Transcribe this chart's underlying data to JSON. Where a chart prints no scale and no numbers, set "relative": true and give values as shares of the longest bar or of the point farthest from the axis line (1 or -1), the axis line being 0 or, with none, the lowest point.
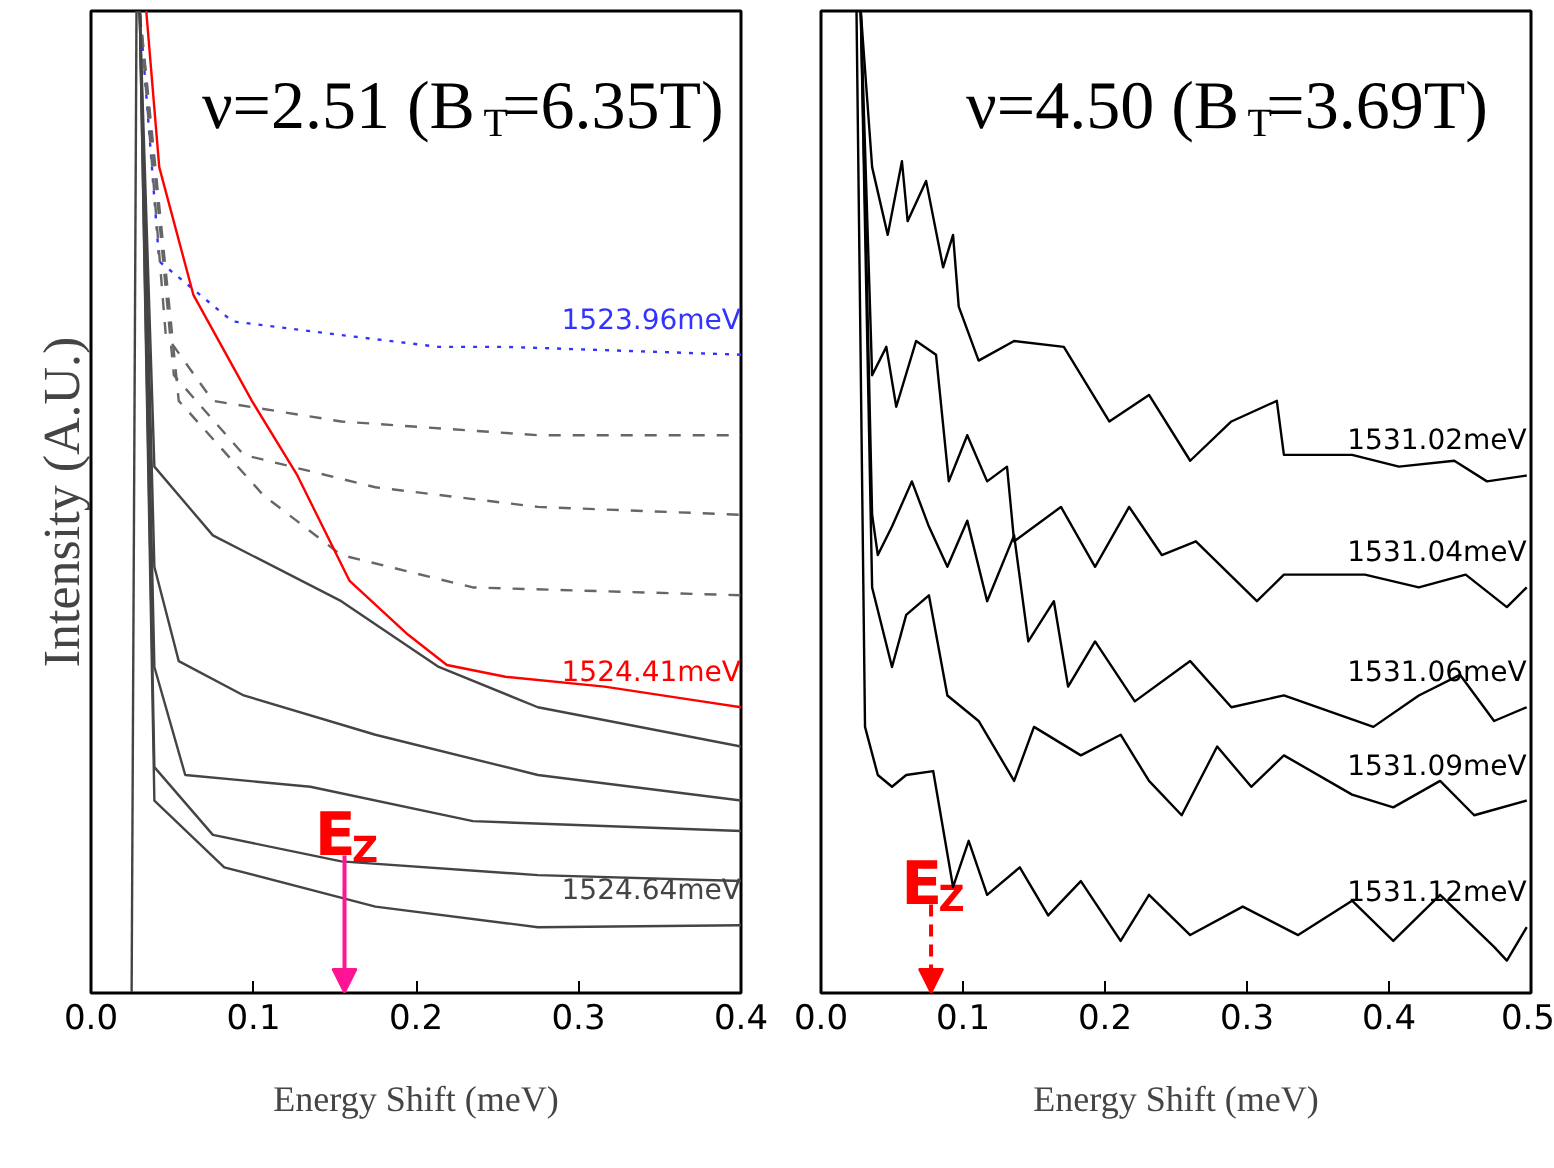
{
  "chart_data": [
    {
      "type": "line",
      "title": "ν=2.51 (B$_{T}$=6.35T)",
      "xlabel": "Energy Shift (meV)",
      "ylabel": "Intensity (A.U.)",
      "relative": true,
      "xlim": [
        0,
        0.4
      ],
      "xticks": [
        {
          "value": 0,
          "label": "0.0"
        },
        {
          "value": 0.1,
          "label": "0.1"
        },
        {
          "value": 0.2,
          "label": "0.2"
        },
        {
          "value": 0.3,
          "label": "0.3"
        },
        {
          "value": 0.4,
          "label": "0.4"
        }
      ],
      "series": [
        {
          "name": "1523.96meV",
          "color": "#3333ff",
          "line_style": "dotted",
          "x": [
            0.03,
            0.042,
            0.087,
            0.154,
            0.214,
            0.255,
            0.4
          ],
          "values": [
            1.0,
            0.745,
            0.684,
            0.67,
            0.658,
            0.658,
            0.65
          ]
        },
        {
          "color": "#666666",
          "line_style": "dashed",
          "x": [
            0.03,
            0.046,
            0.075,
            0.154,
            0.275,
            0.4
          ],
          "values": [
            1.0,
            0.67,
            0.603,
            0.582,
            0.568,
            0.568
          ]
        },
        {
          "color": "#666666",
          "line_style": "dashed",
          "x": [
            0.03,
            0.051,
            0.094,
            0.175,
            0.275,
            0.4
          ],
          "values": [
            1.0,
            0.629,
            0.548,
            0.515,
            0.495,
            0.487
          ]
        },
        {
          "color": "#666666",
          "line_style": "dashed",
          "x": [
            0.03,
            0.054,
            0.106,
            0.154,
            0.235,
            0.4
          ],
          "values": [
            1.0,
            0.603,
            0.507,
            0.446,
            0.413,
            0.405
          ]
        },
        {
          "name": "1524.41meV",
          "color": "#ff0000",
          "line_style": "solid",
          "x": [
            0.034,
            0.042,
            0.063,
            0.099,
            0.127,
            0.159,
            0.195,
            0.219,
            0.255,
            0.316,
            0.376,
            0.4
          ],
          "values": [
            1.0,
            0.841,
            0.711,
            0.603,
            0.527,
            0.42,
            0.365,
            0.334,
            0.322,
            0.312,
            0.297,
            0.291
          ]
        },
        {
          "color": "#444444",
          "line_style": "solid",
          "x": [
            0.03,
            0.039,
            0.075,
            0.154,
            0.214,
            0.275,
            0.4
          ],
          "values": [
            1.0,
            0.536,
            0.466,
            0.399,
            0.332,
            0.291,
            0.251
          ]
        },
        {
          "color": "#444444",
          "line_style": "solid",
          "x": [
            0.03,
            0.039,
            0.054,
            0.094,
            0.175,
            0.275,
            0.4
          ],
          "values": [
            1.0,
            0.434,
            0.338,
            0.303,
            0.263,
            0.222,
            0.196
          ]
        },
        {
          "color": "#444444",
          "line_style": "solid",
          "x": [
            0.03,
            0.039,
            0.058,
            0.135,
            0.235,
            0.4
          ],
          "values": [
            1.0,
            0.332,
            0.222,
            0.21,
            0.175,
            0.165
          ]
        },
        {
          "color": "#444444",
          "line_style": "solid",
          "x": [
            0.03,
            0.039,
            0.075,
            0.154,
            0.275,
            0.4
          ],
          "values": [
            1.0,
            0.23,
            0.161,
            0.134,
            0.12,
            0.114
          ]
        },
        {
          "name": "1524.64meV",
          "color": "#444444",
          "line_style": "solid",
          "x": [
            0.03,
            0.039,
            0.082,
            0.175,
            0.275,
            0.4
          ],
          "values": [
            1.0,
            0.196,
            0.128,
            0.088,
            0.067,
            0.069
          ]
        },
        {
          "color": "#444444",
          "line_style": "solid",
          "x": [
            0.025,
            0.028
          ],
          "values": [
            0.0,
            1.0
          ]
        }
      ],
      "annotations": [
        "E$_{Z}$"
      ]
    },
    {
      "type": "line",
      "title": "ν=4.50 (B$_{T}$=3.69T)",
      "xlabel": "Energy Shift (meV)",
      "relative": true,
      "xlim": [
        0,
        0.5
      ],
      "xticks": [
        {
          "value": 0,
          "label": "0.0"
        },
        {
          "value": 0.1,
          "label": "0.1"
        },
        {
          "value": 0.2,
          "label": "0.2"
        },
        {
          "value": 0.3,
          "label": "0.3"
        },
        {
          "value": 0.4,
          "label": "0.4"
        },
        {
          "value": 0.5,
          "label": "0.5"
        }
      ],
      "series": [
        {
          "name": "1531.02meV",
          "color": "#000000",
          "line_style": "solid",
          "x": [
            0.028,
            0.036,
            0.047,
            0.057,
            0.061,
            0.074,
            0.086,
            0.093,
            0.097,
            0.111,
            0.136,
            0.171,
            0.203,
            0.231,
            0.26,
            0.289,
            0.321,
            0.326,
            0.374,
            0.407,
            0.446,
            0.469,
            0.497
          ],
          "values": [
            1.0,
            0.841,
            0.772,
            0.847,
            0.786,
            0.827,
            0.739,
            0.772,
            0.699,
            0.644,
            0.664,
            0.658,
            0.582,
            0.609,
            0.542,
            0.582,
            0.603,
            0.548,
            0.548,
            0.536,
            0.542,
            0.521,
            0.527
          ]
        },
        {
          "name": "1531.04meV",
          "color": "#000000",
          "line_style": "solid",
          "x": [
            0.028,
            0.036,
            0.046,
            0.053,
            0.067,
            0.081,
            0.09,
            0.103,
            0.117,
            0.131,
            0.136,
            0.169,
            0.193,
            0.217,
            0.24,
            0.264,
            0.307,
            0.326,
            0.383,
            0.421,
            0.454,
            0.483,
            0.497
          ],
          "values": [
            1.0,
            0.629,
            0.658,
            0.597,
            0.664,
            0.65,
            0.521,
            0.568,
            0.521,
            0.536,
            0.46,
            0.495,
            0.434,
            0.495,
            0.446,
            0.46,
            0.399,
            0.426,
            0.426,
            0.413,
            0.426,
            0.393,
            0.413
          ]
        },
        {
          "name": "1531.06meV",
          "color": "#000000",
          "line_style": "solid",
          "x": [
            0.028,
            0.036,
            0.04,
            0.05,
            0.064,
            0.076,
            0.089,
            0.103,
            0.117,
            0.136,
            0.146,
            0.164,
            0.174,
            0.193,
            0.221,
            0.26,
            0.289,
            0.326,
            0.389,
            0.421,
            0.45,
            0.474,
            0.497
          ],
          "values": [
            1.0,
            0.487,
            0.446,
            0.475,
            0.521,
            0.475,
            0.434,
            0.481,
            0.399,
            0.466,
            0.358,
            0.399,
            0.312,
            0.358,
            0.297,
            0.338,
            0.291,
            0.303,
            0.271,
            0.303,
            0.324,
            0.277,
            0.291
          ]
        },
        {
          "name": "1531.09meV",
          "color": "#000000",
          "line_style": "solid",
          "x": [
            0.028,
            0.036,
            0.05,
            0.06,
            0.076,
            0.089,
            0.111,
            0.136,
            0.15,
            0.183,
            0.211,
            0.231,
            0.254,
            0.279,
            0.303,
            0.326,
            0.374,
            0.403,
            0.436,
            0.46,
            0.497
          ],
          "values": [
            1.0,
            0.413,
            0.332,
            0.385,
            0.405,
            0.303,
            0.277,
            0.216,
            0.271,
            0.242,
            0.263,
            0.216,
            0.181,
            0.251,
            0.21,
            0.242,
            0.202,
            0.189,
            0.216,
            0.181,
            0.196
          ]
        },
        {
          "name": "1531.12meV",
          "color": "#000000",
          "line_style": "solid",
          "x": [
            0.025,
            0.031,
            0.04,
            0.05,
            0.06,
            0.079,
            0.093,
            0.104,
            0.117,
            0.14,
            0.16,
            0.183,
            0.211,
            0.231,
            0.26,
            0.297,
            0.336,
            0.374,
            0.403,
            0.436,
            0.474,
            0.483,
            0.497
          ],
          "values": [
            1.0,
            0.271,
            0.222,
            0.21,
            0.222,
            0.226,
            0.108,
            0.155,
            0.1,
            0.128,
            0.079,
            0.114,
            0.053,
            0.1,
            0.059,
            0.088,
            0.059,
            0.094,
            0.053,
            0.1,
            0.047,
            0.033,
            0.067
          ]
        }
      ],
      "annotations": [
        "E$_{Z}$"
      ]
    }
  ]
}
